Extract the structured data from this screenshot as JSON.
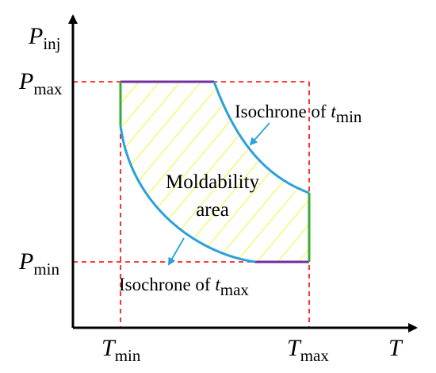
{
  "axes": {
    "y_label": {
      "main": "P",
      "sub": "inj"
    },
    "x_label": "T"
  },
  "ticks": {
    "p_max": {
      "main": "P",
      "sub": "max"
    },
    "p_min": {
      "main": "P",
      "sub": "min"
    },
    "t_min": {
      "main": "T",
      "sub": "min"
    },
    "t_max": {
      "main": "T",
      "sub": "max"
    }
  },
  "region": {
    "line1": "Moldability",
    "line2": "area"
  },
  "annotations": {
    "isochrone_tmin": {
      "text": "Isochrone of ",
      "var": "t",
      "sub": "min"
    },
    "isochrone_tmax": {
      "text": "Isochrone of ",
      "var": "t",
      "sub": "max"
    }
  },
  "colors": {
    "axis": "#000000",
    "bounds_dashed": "#ff0000",
    "isochrone": "#2aa1db",
    "pressure_limit": "#7030a0",
    "temperature_limit": "#3aaa35",
    "hatch": "#f2f200"
  }
}
